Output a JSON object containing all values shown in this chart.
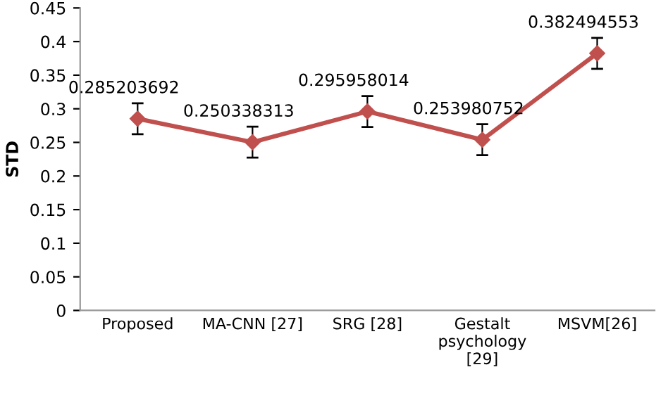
{
  "chart_data": {
    "type": "line",
    "ylabel": "STD",
    "categories": [
      "Proposed",
      "MA-CNN [27]",
      "SRG [28]",
      "Gestalt\npsychology\n[29]",
      "MSVM[26]"
    ],
    "series": [
      {
        "color": "#c0504d",
        "values": [
          0.285203692,
          0.250338313,
          0.295958014,
          0.253980752,
          0.382494553
        ],
        "errors": [
          0.023,
          0.023,
          0.023,
          0.023,
          0.023
        ]
      }
    ],
    "data_labels": true,
    "marker": "diamond",
    "line_style": "solid",
    "grid": false,
    "ylim": [
      0,
      0.45
    ],
    "yticks": [
      0,
      0.05,
      0.1,
      0.15,
      0.2,
      0.25,
      0.3,
      0.35,
      0.4,
      0.45
    ]
  }
}
